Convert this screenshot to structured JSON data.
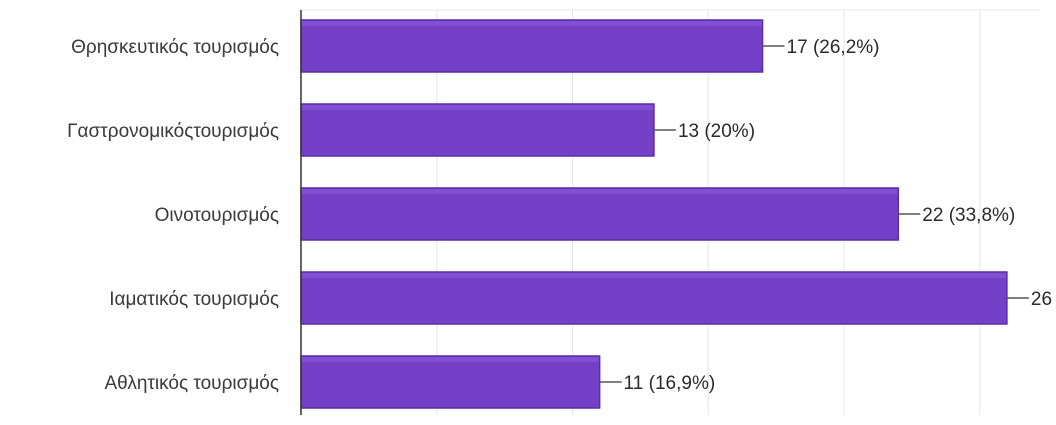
{
  "chart_data": {
    "type": "bar",
    "orientation": "horizontal",
    "categories": [
      "Θρησκευτικός τουρισμός",
      "Γαστρονομικόςτουρισμός",
      "Οινοτουρισμός",
      "Ιαματικός τουρισμός",
      "Αθλητικός τουρισμός"
    ],
    "values": [
      17,
      13,
      22,
      26,
      11
    ],
    "data_labels": [
      "17 (26,2%)",
      "13 (20%)",
      "22 (33,8%)",
      "26",
      "11 (16,9%)"
    ],
    "xlim": [
      0,
      28
    ],
    "grid": true,
    "legend": "none",
    "colors": {
      "bar_fill": "#7440c8",
      "bar_edge": "#5a2fa6",
      "bar_highlight": "#8d5ad8"
    }
  }
}
